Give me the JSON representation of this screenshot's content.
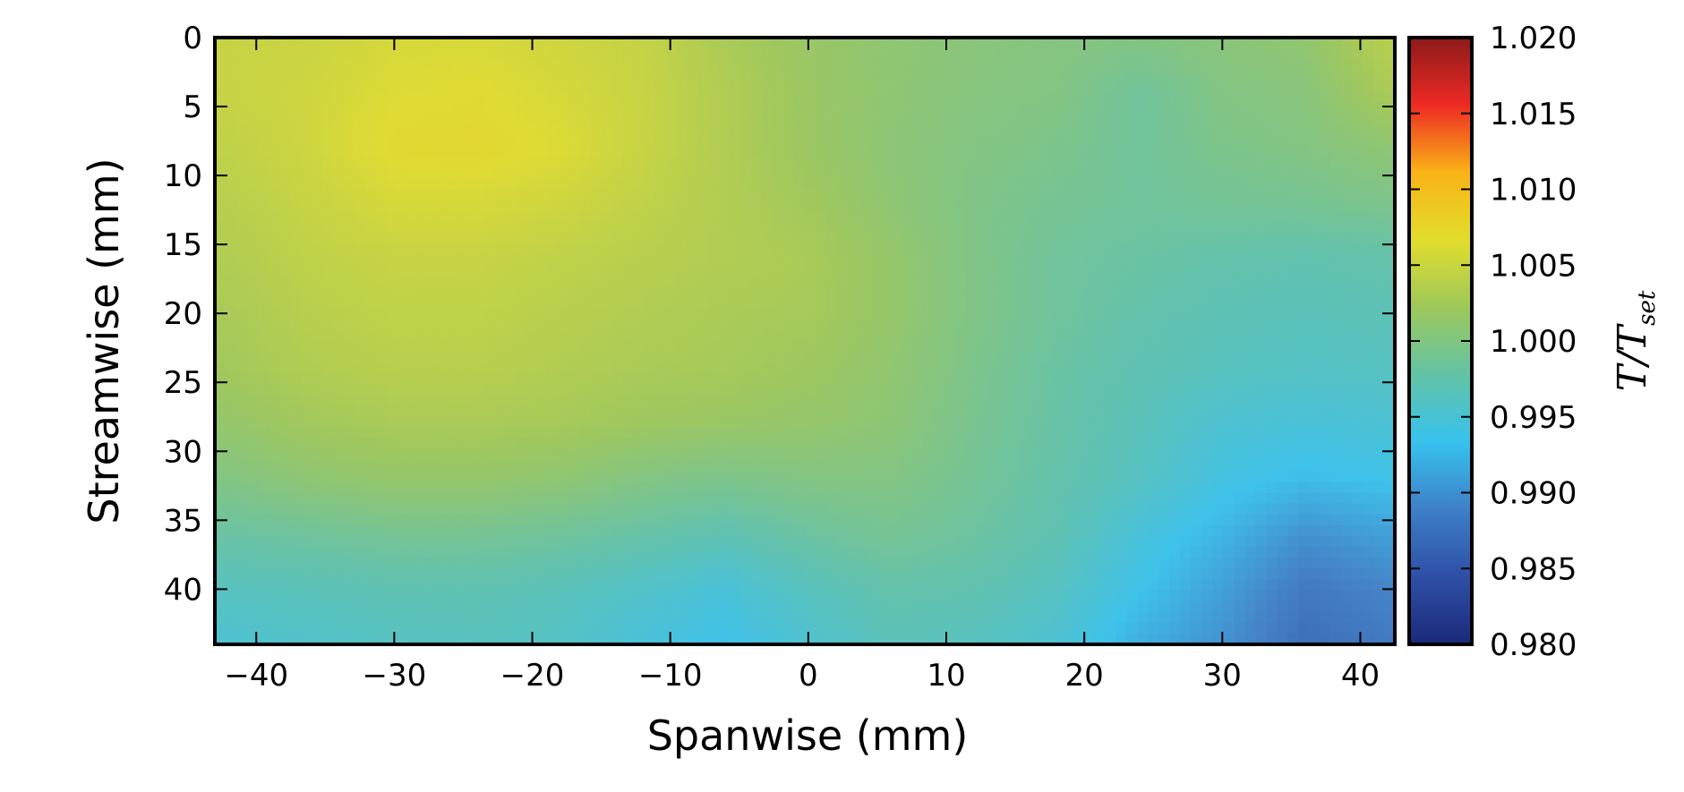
{
  "chart_data": {
    "type": "heatmap",
    "title": "",
    "xlabel": "Spanwise (mm)",
    "ylabel": "Streamwise (mm)",
    "xlim": [
      -43,
      42.5
    ],
    "ylim": [
      44,
      0
    ],
    "y_inverted": true,
    "x_ticks": [
      -40,
      -30,
      -20,
      -10,
      0,
      10,
      20,
      30,
      40
    ],
    "x_tick_labels": [
      "−40",
      "−30",
      "−20",
      "−10",
      "0",
      "10",
      "20",
      "30",
      "40"
    ],
    "y_ticks": [
      0,
      5,
      10,
      15,
      20,
      25,
      30,
      35,
      40
    ],
    "y_tick_labels": [
      "0",
      "5",
      "10",
      "15",
      "20",
      "25",
      "30",
      "35",
      "40"
    ],
    "colorbar": {
      "label_main": "T/T",
      "label_sub": "set",
      "vmin": 0.98,
      "vmax": 1.02,
      "ticks": [
        0.98,
        0.985,
        0.99,
        0.995,
        1.0,
        1.005,
        1.01,
        1.015,
        1.02
      ],
      "tick_labels": [
        "0.980",
        "0.985",
        "0.990",
        "0.995",
        "1.000",
        "1.005",
        "1.010",
        "1.015",
        "1.020"
      ],
      "colormap": "jet",
      "colors": [
        "#1b2a7a",
        "#2e4fa6",
        "#3e7fc8",
        "#37c2ee",
        "#63c3a6",
        "#9dc85a",
        "#e2dd2c",
        "#f9b316",
        "#ee2a24",
        "#8c1a1a"
      ]
    },
    "grid_x": [
      -42,
      -36,
      -30,
      -24,
      -18,
      -12,
      -6,
      0,
      6,
      12,
      18,
      24,
      30,
      36,
      42
    ],
    "grid_y": [
      0,
      4,
      8,
      12,
      16,
      20,
      24,
      28,
      32,
      36,
      40,
      44
    ],
    "values": [
      [
        1.005,
        1.0052,
        1.006,
        1.006,
        1.0055,
        1.0048,
        1.003,
        1.0018,
        1.001,
        1.0005,
        1.0002,
        1.0,
        1.0005,
        1.0012,
        1.004
      ],
      [
        1.005,
        1.0055,
        1.0065,
        1.0068,
        1.006,
        1.005,
        1.0035,
        1.002,
        1.001,
        1.0003,
        1.0,
        0.9985,
        1.0,
        1.0005,
        1.003
      ],
      [
        1.0045,
        1.0055,
        1.007,
        1.0072,
        1.0065,
        1.005,
        1.0035,
        1.002,
        1.0008,
        1.0,
        0.9995,
        0.9985,
        0.9995,
        1.0,
        1.001
      ],
      [
        1.004,
        1.005,
        1.006,
        1.006,
        1.0055,
        1.0045,
        1.0035,
        1.0025,
        1.001,
        0.9998,
        0.999,
        0.9985,
        0.9988,
        0.999,
        0.9995
      ],
      [
        1.0035,
        1.0045,
        1.005,
        1.005,
        1.0045,
        1.004,
        1.0035,
        1.003,
        1.0015,
        0.9998,
        0.9985,
        0.998,
        0.9975,
        0.9972,
        0.9975
      ],
      [
        1.003,
        1.004,
        1.0045,
        1.0045,
        1.004,
        1.0035,
        1.003,
        1.0028,
        1.0015,
        0.9998,
        0.9985,
        0.9975,
        0.9968,
        0.9965,
        0.9968
      ],
      [
        1.0025,
        1.0035,
        1.004,
        1.004,
        1.0035,
        1.003,
        1.0028,
        1.0022,
        1.0012,
        0.9995,
        0.998,
        0.997,
        0.9962,
        0.9958,
        0.996
      ],
      [
        1.0015,
        1.0025,
        1.003,
        1.003,
        1.0028,
        1.0022,
        1.0018,
        1.0015,
        1.0008,
        0.9992,
        0.9978,
        0.9965,
        0.995,
        0.9945,
        0.9948
      ],
      [
        1.0,
        1.001,
        1.0015,
        1.0015,
        1.001,
        1.0,
        0.9995,
        1.0,
        1.0,
        0.9988,
        0.9975,
        0.996,
        0.994,
        0.993,
        0.9935
      ],
      [
        0.998,
        0.9985,
        0.999,
        0.999,
        0.9985,
        0.9978,
        0.997,
        0.9982,
        0.999,
        0.9982,
        0.997,
        0.9945,
        0.9925,
        0.99,
        0.991
      ],
      [
        0.9962,
        0.9965,
        0.997,
        0.997,
        0.9965,
        0.9955,
        0.9945,
        0.9962,
        0.9975,
        0.9972,
        0.996,
        0.9935,
        0.991,
        0.988,
        0.989
      ],
      [
        0.995,
        0.9955,
        0.996,
        0.9962,
        0.9958,
        0.9945,
        0.9935,
        0.9952,
        0.9965,
        0.9962,
        0.995,
        0.992,
        0.99,
        0.987,
        0.988
      ]
    ]
  }
}
